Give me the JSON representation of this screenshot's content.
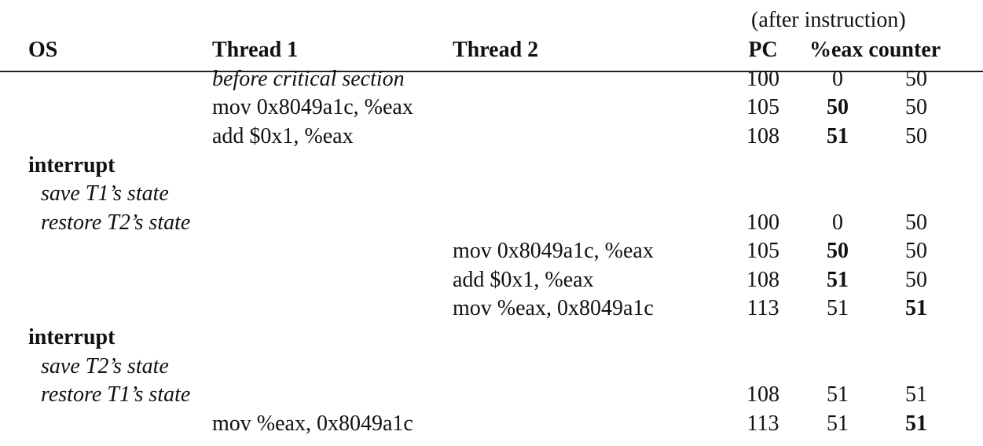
{
  "header": {
    "after_instruction": "(after instruction)",
    "os": "OS",
    "thread1": "Thread 1",
    "thread2": "Thread 2",
    "pc": "PC",
    "eax_counter": "%eax counter"
  },
  "rows": [
    {
      "t1": "before critical section",
      "pc": "100",
      "eax": "0",
      "counter": "50"
    },
    {
      "t1": "mov 0x8049a1c, %eax",
      "pc": "105",
      "eax": "50",
      "counter": "50"
    },
    {
      "t1": "add $0x1, %eax",
      "pc": "108",
      "eax": "51",
      "counter": "50"
    },
    {
      "os": "interrupt"
    },
    {
      "os": "save T1’s state"
    },
    {
      "os": "restore T2’s state",
      "pc": "100",
      "eax": "0",
      "counter": "50"
    },
    {
      "t2": "mov 0x8049a1c, %eax",
      "pc": "105",
      "eax": "50",
      "counter": "50"
    },
    {
      "t2": "add $0x1, %eax",
      "pc": "108",
      "eax": "51",
      "counter": "50"
    },
    {
      "t2": "mov %eax, 0x8049a1c",
      "pc": "113",
      "eax": "51",
      "counter": "51"
    },
    {
      "os": "interrupt"
    },
    {
      "os": "save T2’s state"
    },
    {
      "os": "restore T1’s state",
      "pc": "108",
      "eax": "51",
      "counter": "51"
    },
    {
      "t1": "mov %eax, 0x8049a1c",
      "pc": "113",
      "eax": "51",
      "counter": "51"
    }
  ]
}
